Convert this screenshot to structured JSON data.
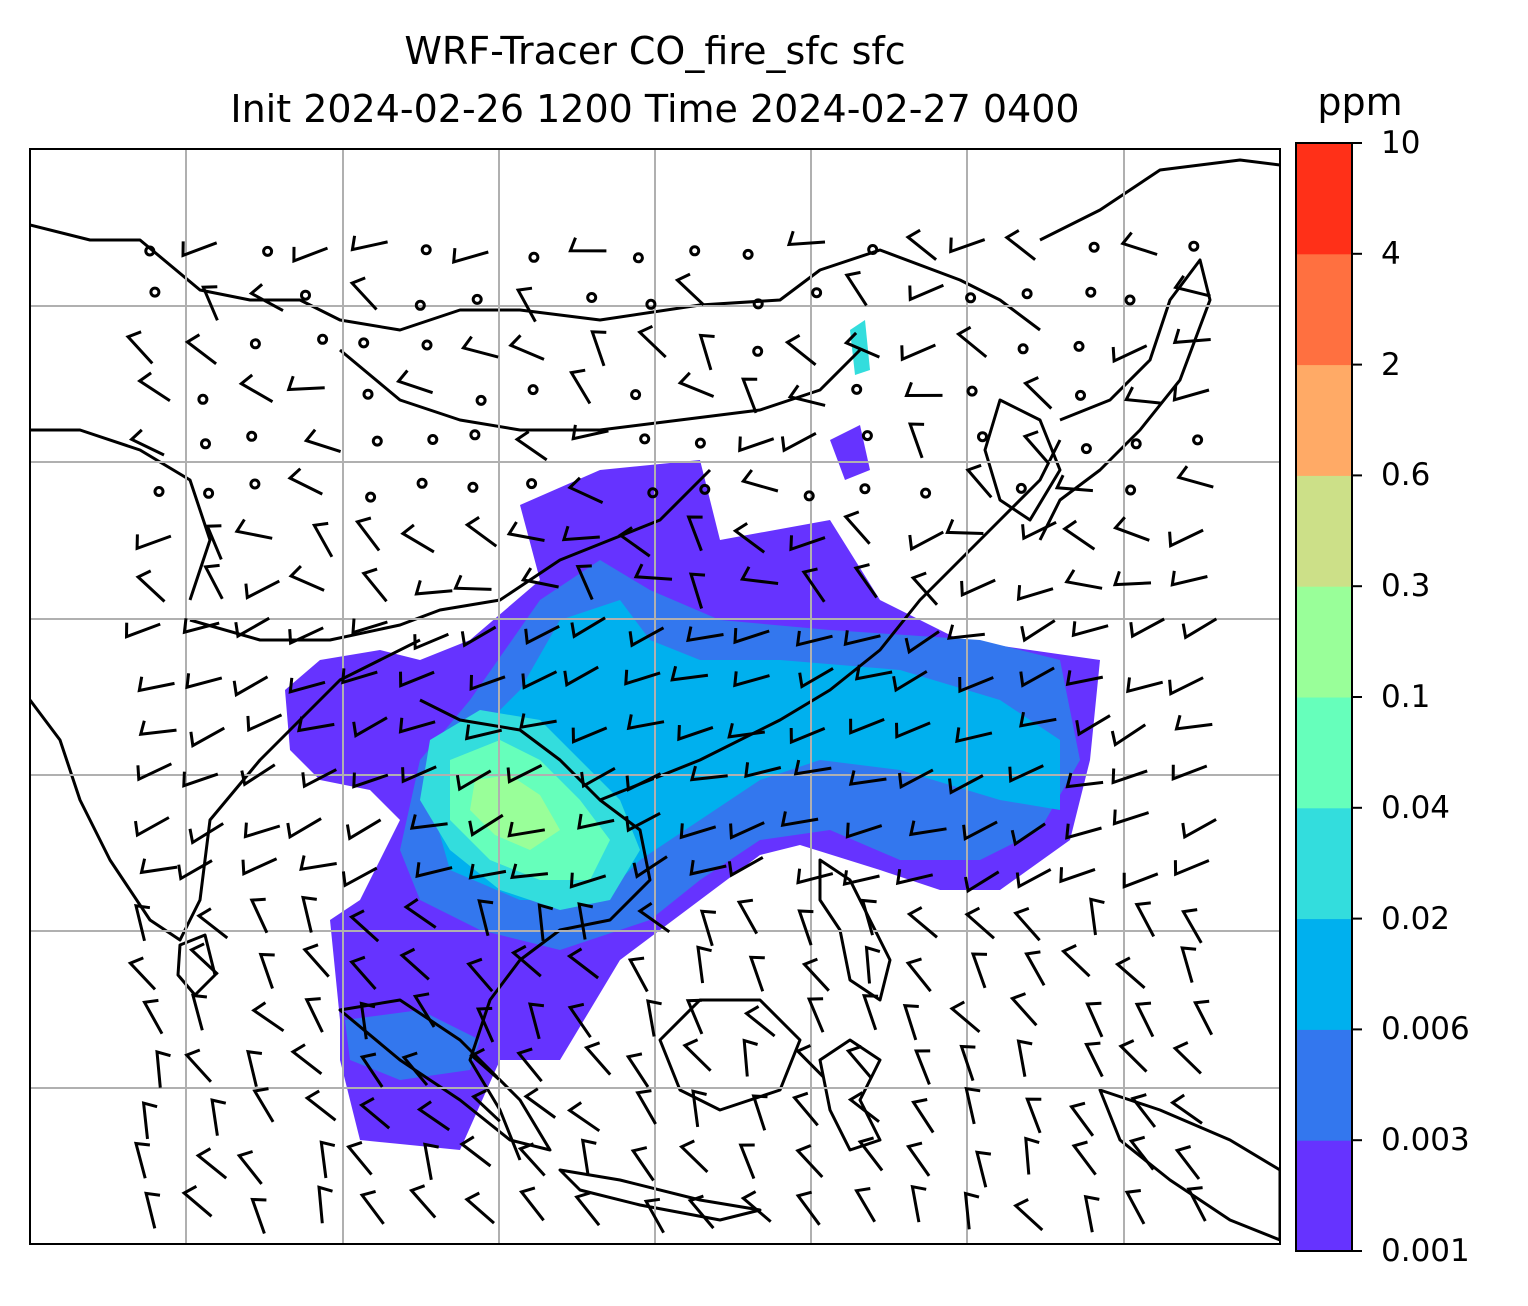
{
  "title": {
    "line1": "WRF-Tracer CO_fire_sfc sfc",
    "line2": "Init 2024-02-26 1200 Time 2024-02-27 0400"
  },
  "colorbar": {
    "unit": "ppm",
    "levels": [
      "0.001",
      "0.003",
      "0.006",
      "0.02",
      "0.04",
      "0.1",
      "0.3",
      "0.6",
      "2",
      "4",
      "10"
    ],
    "colors": [
      "#6633ff",
      "#3377ee",
      "#00b0ee",
      "#33dddd",
      "#66ffbb",
      "#99ff99",
      "#cce088",
      "#ffaa66",
      "#ff7040",
      "#ff3018"
    ]
  },
  "map": {
    "field": "CO_fire_sfc",
    "gridlines": true,
    "wind_barbs": true
  }
}
